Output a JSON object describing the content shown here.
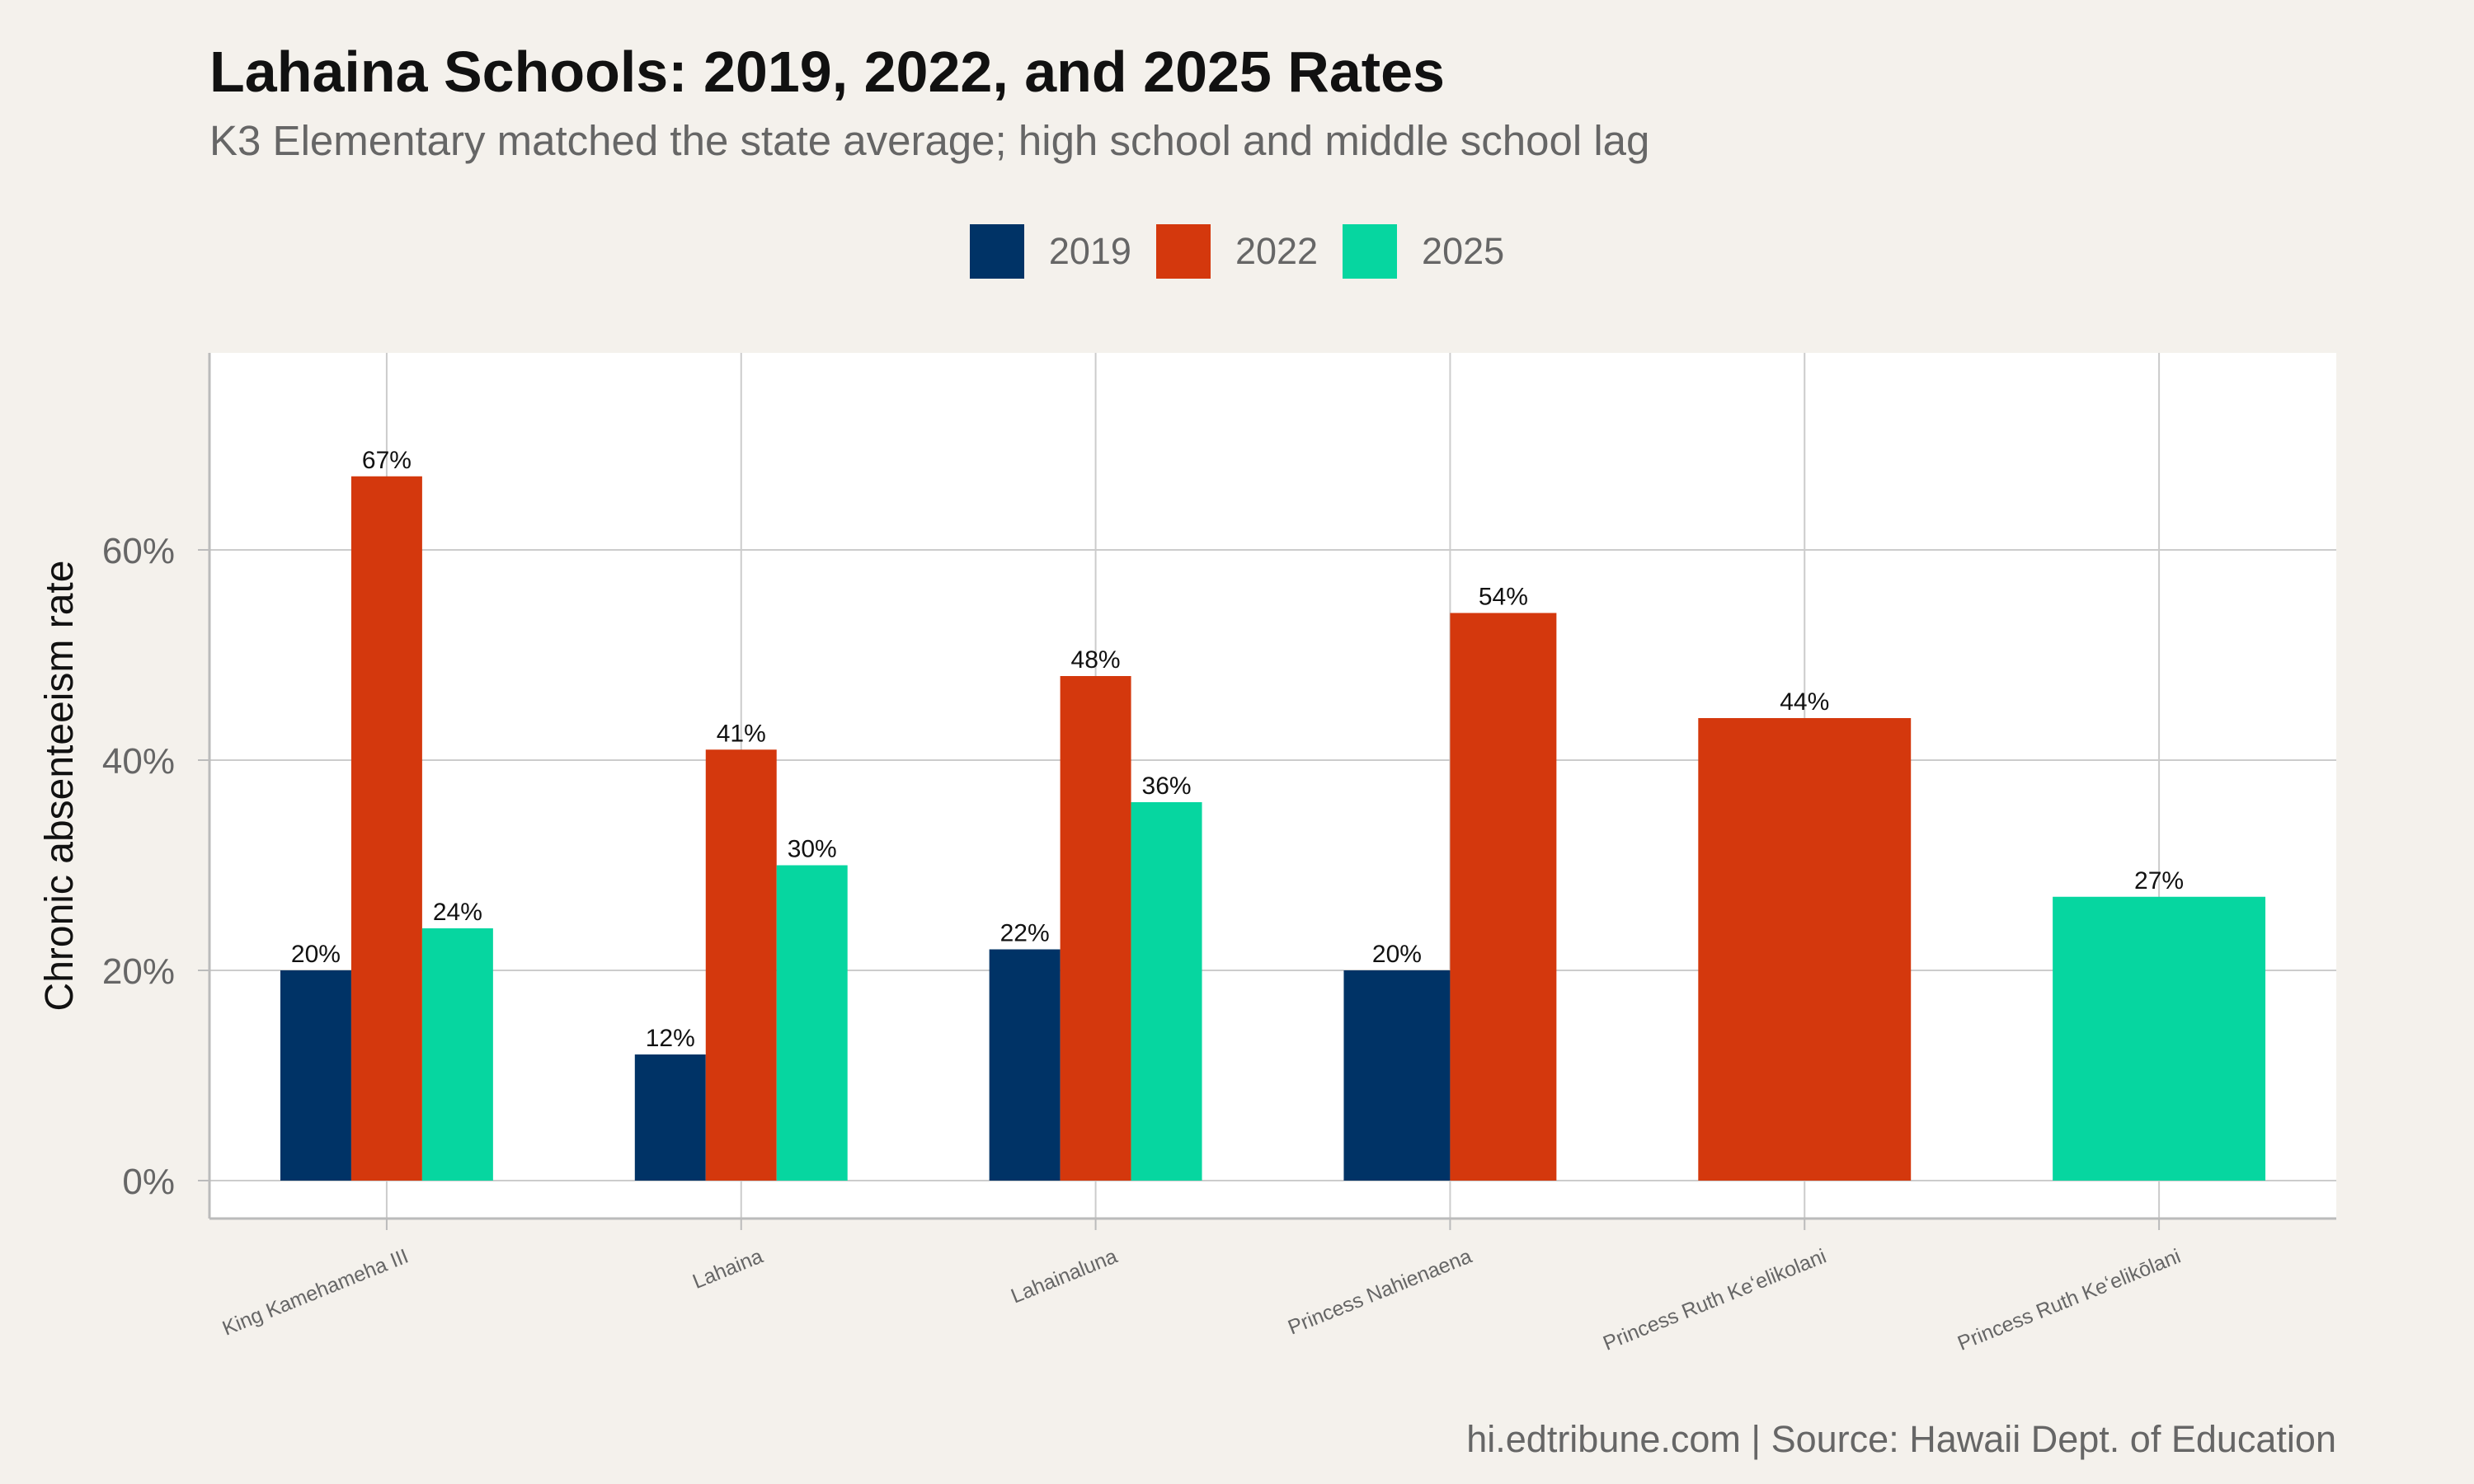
{
  "title": "Lahaina Schools: 2019, 2022, and 2025 Rates",
  "subtitle": "K3 Elementary matched the state average; high school and middle school lag",
  "caption": "hi.edtribune.com | Source: Hawaii Dept. of Education",
  "colors": {
    "2019": "#003366",
    "2022": "#d4380d",
    "2025": "#06d6a0",
    "background": "#f4f1ec",
    "panel": "#ffffff",
    "grid": "#cccccc",
    "axis_text": "#666666"
  },
  "legend": {
    "items": [
      {
        "label": "2019",
        "color": "#003366"
      },
      {
        "label": "2022",
        "color": "#d4380d"
      },
      {
        "label": "2025",
        "color": "#06d6a0"
      }
    ],
    "placement": "top"
  },
  "chart_data": {
    "type": "bar",
    "orientation": "vertical",
    "grouping": "dodge",
    "ylabel": "Chronic absenteeism rate",
    "xlabel": "",
    "ylim": [
      0,
      0.75
    ],
    "y_ticks": [
      0,
      0.2,
      0.4,
      0.6
    ],
    "y_tick_labels": [
      "0%",
      "20%",
      "40%",
      "60%"
    ],
    "grid": true,
    "categories": [
      "King Kamehameha III",
      "Lahaina",
      "Lahainaluna",
      "Princess Nahienaena",
      "Princess Ruth Keʻelikolani",
      "Princess Ruth Keʻelikōlani"
    ],
    "groups": [
      {
        "category": "King Kamehameha III",
        "bars": [
          {
            "series": "2019",
            "value": 0.2,
            "label": "20%"
          },
          {
            "series": "2022",
            "value": 0.67,
            "label": "67%"
          },
          {
            "series": "2025",
            "value": 0.24,
            "label": "24%"
          }
        ]
      },
      {
        "category": "Lahaina",
        "bars": [
          {
            "series": "2019",
            "value": 0.12,
            "label": "12%"
          },
          {
            "series": "2022",
            "value": 0.41,
            "label": "41%"
          },
          {
            "series": "2025",
            "value": 0.3,
            "label": "30%"
          }
        ]
      },
      {
        "category": "Lahainaluna",
        "bars": [
          {
            "series": "2019",
            "value": 0.22,
            "label": "22%"
          },
          {
            "series": "2022",
            "value": 0.48,
            "label": "48%"
          },
          {
            "series": "2025",
            "value": 0.36,
            "label": "36%"
          }
        ]
      },
      {
        "category": "Princess Nahienaena",
        "bars": [
          {
            "series": "2019",
            "value": 0.2,
            "label": "20%"
          },
          {
            "series": "2022",
            "value": 0.54,
            "label": "54%"
          }
        ]
      },
      {
        "category": "Princess Ruth Keʻelikolani",
        "bars": [
          {
            "series": "2022",
            "value": 0.44,
            "label": "44%"
          }
        ]
      },
      {
        "category": "Princess Ruth Keʻelikōlani",
        "bars": [
          {
            "series": "2025",
            "value": 0.27,
            "label": "27%"
          }
        ]
      }
    ]
  }
}
